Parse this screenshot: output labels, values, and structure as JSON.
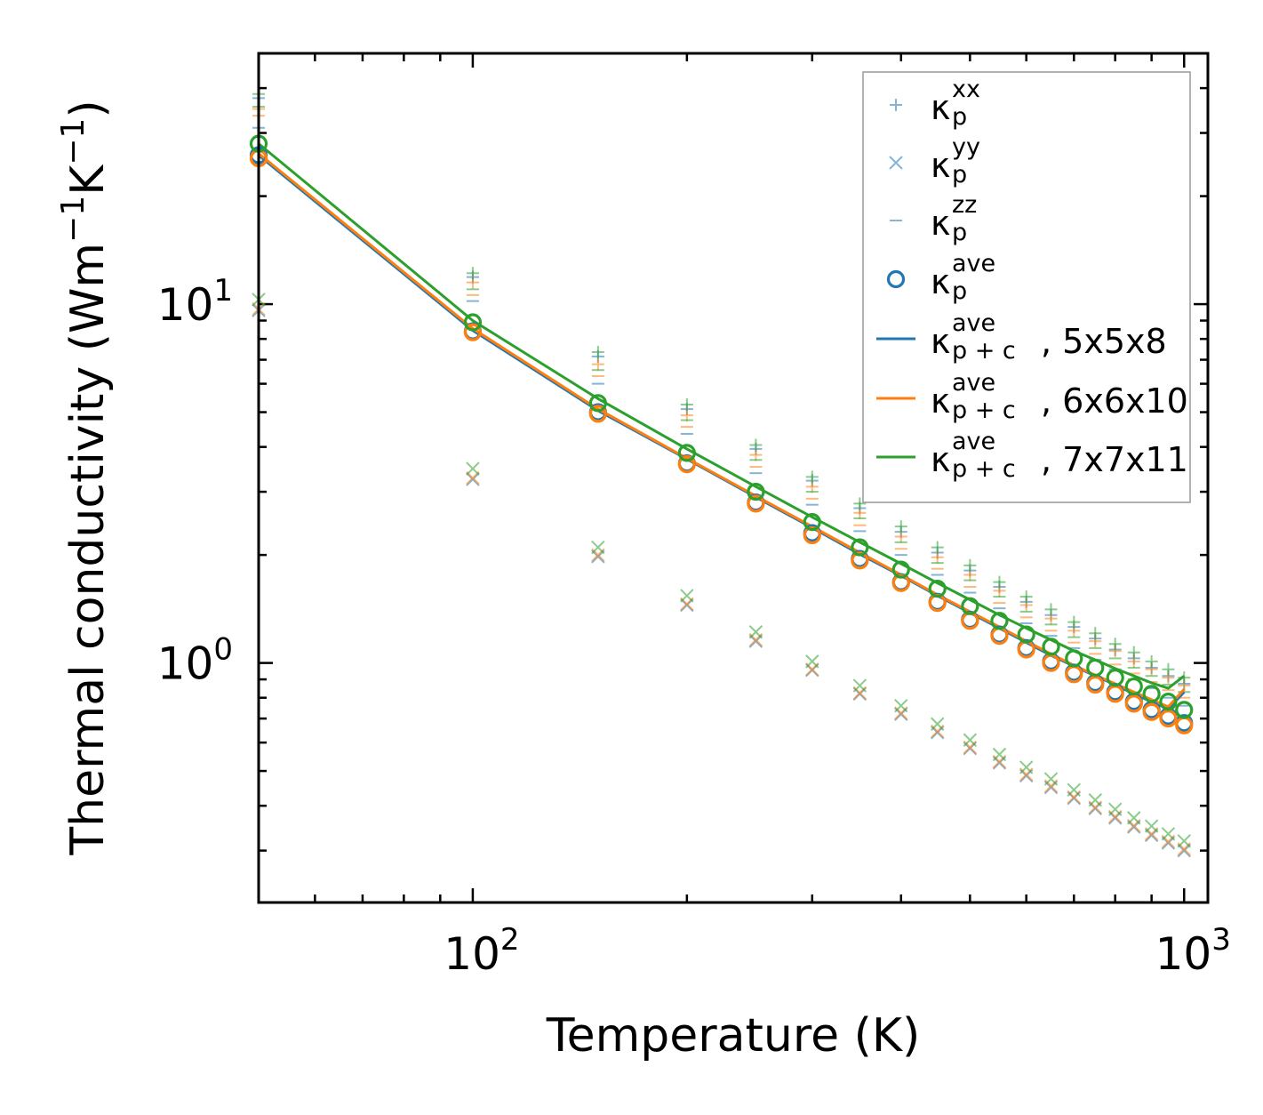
{
  "chart_data": {
    "type": "scatter",
    "scale": {
      "x": "log",
      "y": "log"
    },
    "xlabel": "Temperature (K)",
    "ylabel": "Thermal conductivity (Wm",
    "ylabel_sup1": "−1",
    "ylabel_mid": "K",
    "ylabel_sup2": "−1",
    "ylabel_end": ")",
    "xlim": [
      50,
      1080
    ],
    "ylim": [
      0.215,
      50
    ],
    "x_ticks": [
      {
        "value": 100,
        "base": "10",
        "exp": "2"
      },
      {
        "value": 1000,
        "base": "10",
        "exp": "3"
      }
    ],
    "y_ticks": [
      {
        "value": 1,
        "base": "10",
        "exp": "0"
      },
      {
        "value": 10,
        "base": "10",
        "exp": "1"
      }
    ],
    "temperatures": [
      50,
      100,
      150,
      200,
      250,
      300,
      350,
      400,
      450,
      500,
      550,
      600,
      650,
      700,
      750,
      800,
      850,
      900,
      950,
      1000
    ],
    "series": [
      {
        "name": "5x5x8",
        "color": "#1f77b4",
        "kxx": [
          37.5,
          11.9,
          7.15,
          5.1,
          3.95,
          3.22,
          2.7,
          2.32,
          2.03,
          1.81,
          1.63,
          1.48,
          1.36,
          1.26,
          1.17,
          1.09,
          1.03,
          0.97,
          0.92,
          0.875
        ],
        "kyy": [
          9.6,
          3.25,
          1.98,
          1.45,
          1.15,
          0.955,
          0.82,
          0.72,
          0.64,
          0.578,
          0.527,
          0.485,
          0.45,
          0.42,
          0.393,
          0.37,
          0.349,
          0.331,
          0.315,
          0.3
        ],
        "kzz": [
          31.0,
          10.2,
          6.0,
          4.35,
          3.38,
          2.76,
          2.33,
          2.0,
          1.76,
          1.57,
          1.42,
          1.29,
          1.19,
          1.1,
          1.02,
          0.96,
          0.9,
          0.85,
          0.8,
          0.76
        ],
        "kave": [
          26.0,
          8.4,
          5.0,
          3.6,
          2.8,
          2.3,
          1.95,
          1.68,
          1.48,
          1.32,
          1.2,
          1.1,
          1.01,
          0.94,
          0.88,
          0.83,
          0.78,
          0.74,
          0.71,
          0.68
        ],
        "kpc": [
          26.0,
          8.45,
          5.05,
          3.7,
          2.9,
          2.38,
          2.01,
          1.75,
          1.54,
          1.38,
          1.25,
          1.14,
          1.05,
          0.98,
          0.92,
          0.87,
          0.82,
          0.78,
          0.745,
          0.83
        ]
      },
      {
        "name": "6x6x10",
        "color": "#ff7f0e",
        "kxx": [
          35.0,
          11.5,
          6.8,
          4.9,
          3.8,
          3.1,
          2.62,
          2.25,
          1.97,
          1.76,
          1.59,
          1.45,
          1.33,
          1.23,
          1.15,
          1.08,
          1.01,
          0.96,
          0.91,
          0.865
        ],
        "kyy": [
          9.7,
          3.28,
          2.0,
          1.46,
          1.16,
          0.96,
          0.825,
          0.725,
          0.645,
          0.582,
          0.531,
          0.489,
          0.454,
          0.423,
          0.396,
          0.373,
          0.352,
          0.334,
          0.318,
          0.303
        ],
        "kzz": [
          33.5,
          10.6,
          6.3,
          4.55,
          3.52,
          2.87,
          2.42,
          2.08,
          1.83,
          1.63,
          1.47,
          1.34,
          1.23,
          1.14,
          1.06,
          0.99,
          0.935,
          0.885,
          0.84,
          0.8
        ],
        "kave": [
          25.5,
          8.35,
          4.95,
          3.58,
          2.78,
          2.27,
          1.93,
          1.67,
          1.47,
          1.31,
          1.19,
          1.09,
          1.0,
          0.93,
          0.87,
          0.82,
          0.77,
          0.73,
          0.7,
          0.67
        ],
        "kpc": [
          26.3,
          8.55,
          5.1,
          3.72,
          2.92,
          2.4,
          2.03,
          1.76,
          1.55,
          1.39,
          1.26,
          1.15,
          1.06,
          0.985,
          0.925,
          0.875,
          0.83,
          0.79,
          0.755,
          0.845
        ]
      },
      {
        "name": "7x7x11",
        "color": "#2ca02c",
        "kxx": [
          38.5,
          12.2,
          7.35,
          5.25,
          4.05,
          3.3,
          2.78,
          2.4,
          2.1,
          1.87,
          1.68,
          1.53,
          1.41,
          1.3,
          1.21,
          1.13,
          1.07,
          1.01,
          0.96,
          0.91
        ],
        "kyy": [
          10.3,
          3.48,
          2.1,
          1.54,
          1.22,
          1.01,
          0.865,
          0.76,
          0.676,
          0.61,
          0.556,
          0.512,
          0.475,
          0.443,
          0.415,
          0.391,
          0.37,
          0.351,
          0.334,
          0.319
        ],
        "kzz": [
          35.5,
          11.0,
          6.55,
          4.75,
          3.68,
          3.0,
          2.53,
          2.17,
          1.9,
          1.7,
          1.53,
          1.39,
          1.28,
          1.18,
          1.1,
          1.03,
          0.97,
          0.92,
          0.87,
          0.83
        ],
        "kave": [
          28.0,
          8.9,
          5.3,
          3.85,
          3.0,
          2.47,
          2.1,
          1.82,
          1.61,
          1.44,
          1.31,
          1.2,
          1.11,
          1.03,
          0.97,
          0.91,
          0.86,
          0.82,
          0.78,
          0.74
        ],
        "kpc": [
          28.0,
          9.0,
          5.45,
          3.95,
          3.1,
          2.55,
          2.17,
          1.89,
          1.67,
          1.5,
          1.36,
          1.25,
          1.16,
          1.08,
          1.02,
          0.965,
          0.92,
          0.88,
          0.85,
          0.92
        ]
      }
    ],
    "legend": {
      "position": "upper-right",
      "entries": [
        {
          "kind": "plus",
          "base": "κ",
          "sup": "xx",
          "sub": "p",
          "suffix": "",
          "color": "#1f77b4"
        },
        {
          "kind": "cross",
          "base": "κ",
          "sup": "yy",
          "sub": "p",
          "suffix": "",
          "color": "#1f77b4"
        },
        {
          "kind": "dash",
          "base": "κ",
          "sup": "zz",
          "sub": "p",
          "suffix": "",
          "color": "#1f77b4"
        },
        {
          "kind": "circle",
          "base": "κ",
          "sup": "ave",
          "sub": "p",
          "suffix": "",
          "color": "#1f77b4"
        },
        {
          "kind": "line",
          "base": "κ",
          "sup": "ave",
          "sub": "p + c",
          "suffix": ", 5x5x8",
          "color": "#1f77b4"
        },
        {
          "kind": "line",
          "base": "κ",
          "sup": "ave",
          "sub": "p + c",
          "suffix": ", 6x6x10",
          "color": "#ff7f0e"
        },
        {
          "kind": "line",
          "base": "κ",
          "sup": "ave",
          "sub": "p + c",
          "suffix": ", 7x7x11",
          "color": "#2ca02c"
        }
      ]
    }
  }
}
